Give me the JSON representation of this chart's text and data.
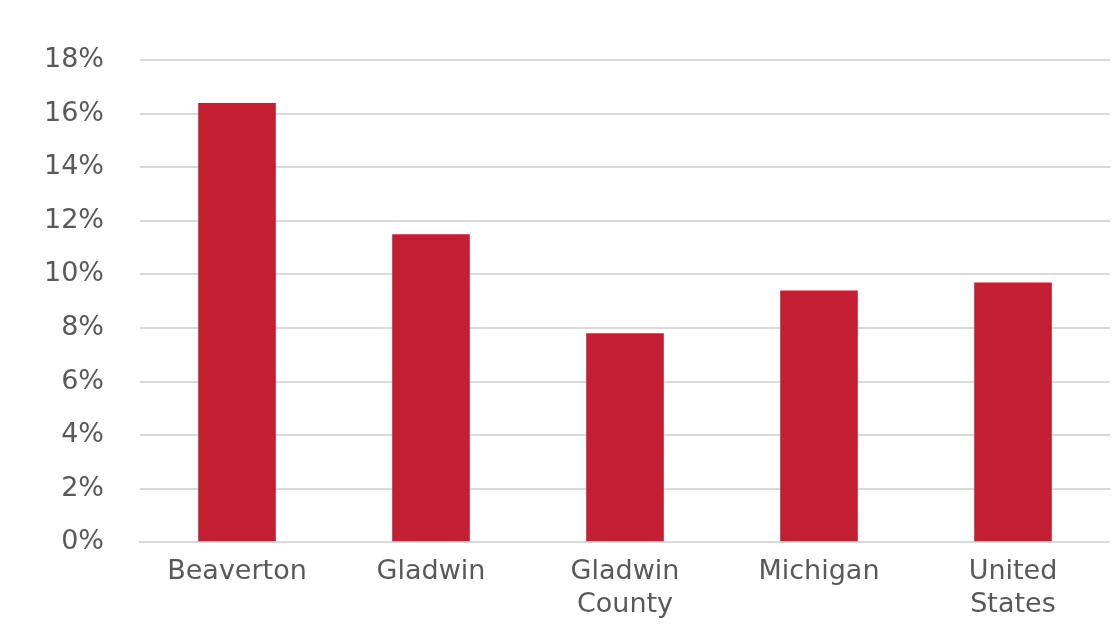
{
  "chart_data": {
    "type": "bar",
    "categories": [
      "Beaverton",
      "Gladwin",
      "Gladwin County",
      "Michigan",
      "United States"
    ],
    "values": [
      16.4,
      11.5,
      7.8,
      9.4,
      9.7
    ],
    "color": "#c41e33",
    "ylim": [
      0,
      18
    ],
    "yticks": [
      {
        "value": 0,
        "label": "0%"
      },
      {
        "value": 2,
        "label": "2%"
      },
      {
        "value": 4,
        "label": "4%"
      },
      {
        "value": 6,
        "label": "6%"
      },
      {
        "value": 8,
        "label": "8%"
      },
      {
        "value": 10,
        "label": "10%"
      },
      {
        "value": 12,
        "label": "12%"
      },
      {
        "value": 14,
        "label": "14%"
      },
      {
        "value": 16,
        "label": "16%"
      },
      {
        "value": 18,
        "label": "18%"
      }
    ],
    "grid": "y",
    "legend": false
  }
}
